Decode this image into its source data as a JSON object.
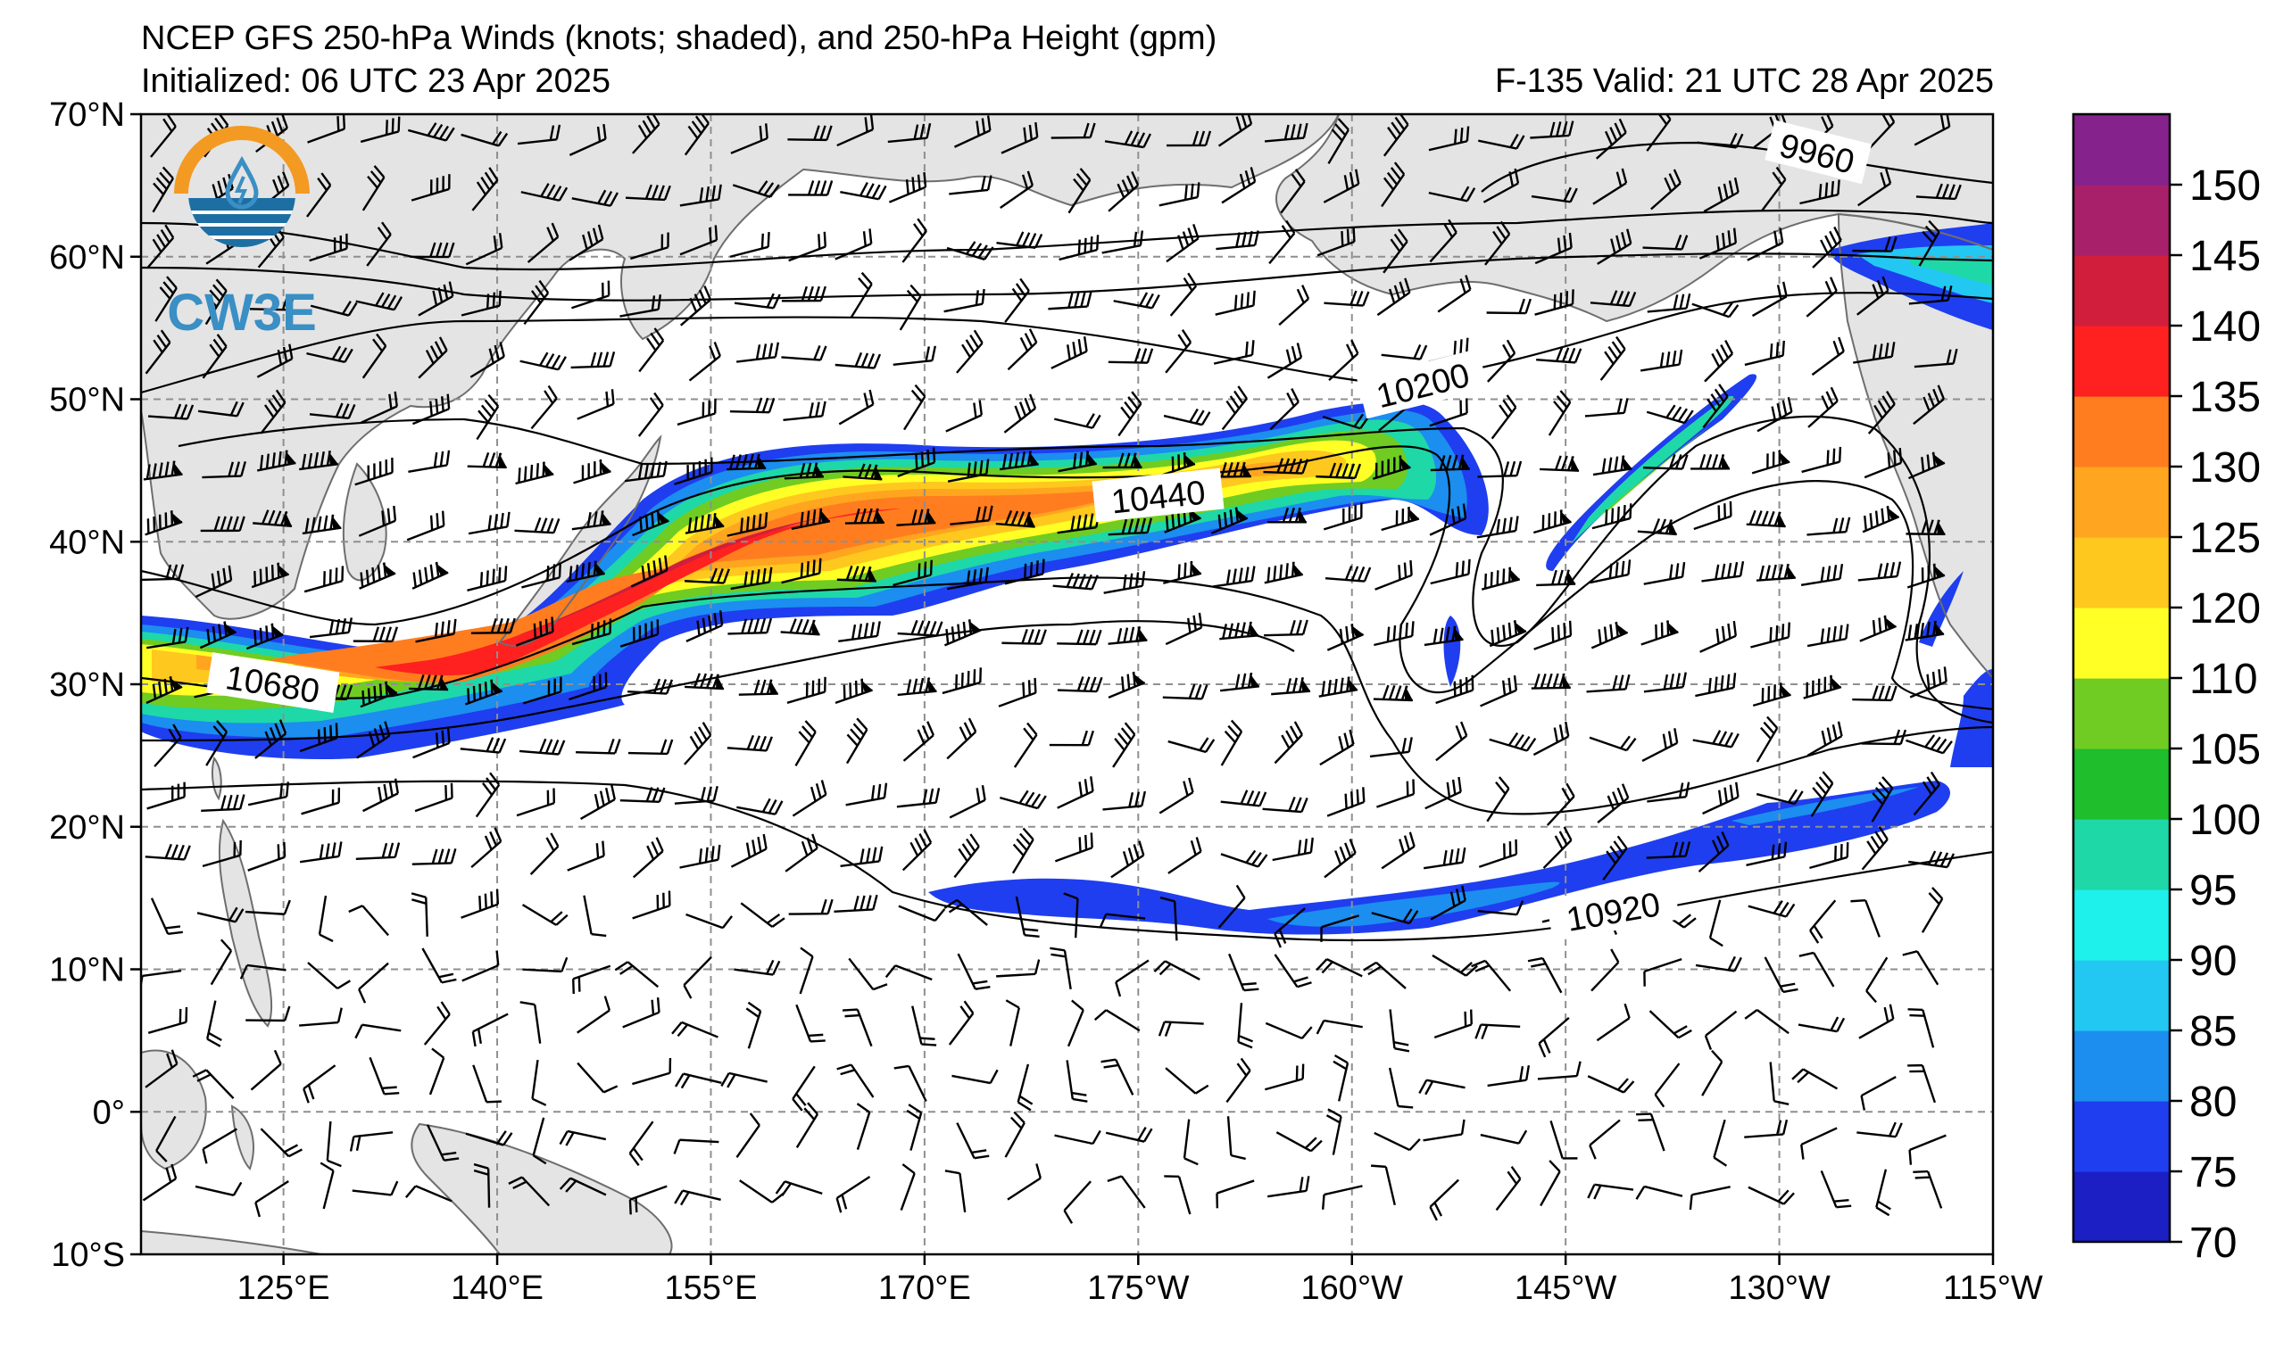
{
  "header": {
    "title": "NCEP GFS 250-hPa Winds (knots; shaded), and 250-hPa Height (gpm)",
    "initialized": "Initialized: 06 UTC 23 Apr 2025",
    "valid": "F-135  Valid: 21 UTC 28 Apr 2025"
  },
  "logo": {
    "text": "CW3E",
    "colors": {
      "ring": "#f39a23",
      "sea": "#1d6fa3",
      "text": "#3a8fc4"
    }
  },
  "map": {
    "lon_ticks": [
      "125°E",
      "140°E",
      "155°E",
      "170°E",
      "175°W",
      "160°W",
      "145°W",
      "130°W",
      "115°W"
    ],
    "lat_ticks": [
      "70°N",
      "60°N",
      "50°N",
      "40°N",
      "30°N",
      "20°N",
      "10°N",
      "0°",
      "10°S"
    ],
    "contour_labels": [
      "9960",
      "10200",
      "10440",
      "10680",
      "10920"
    ],
    "land_color": "#e4e4e4",
    "coast_color": "#6e6e6e"
  },
  "colorbar": {
    "levels": [
      70,
      75,
      80,
      85,
      90,
      95,
      100,
      105,
      110,
      120,
      125,
      130,
      135,
      140,
      145,
      150
    ],
    "tick_labels": [
      "70",
      "75",
      "80",
      "85",
      "90",
      "95",
      "100",
      "105",
      "110",
      "120",
      "125",
      "130",
      "135",
      "140",
      "145",
      "150"
    ],
    "colors": [
      "#1c1fc4",
      "#1f3ef0",
      "#1b8ef0",
      "#22c8f2",
      "#1ef1ec",
      "#1ed8a8",
      "#1fbe2d",
      "#70cc22",
      "#ffff26",
      "#ffc81e",
      "#ffa51f",
      "#ff7d1f",
      "#ff2020",
      "#d11e3c",
      "#a8206a",
      "#85228c"
    ]
  }
}
